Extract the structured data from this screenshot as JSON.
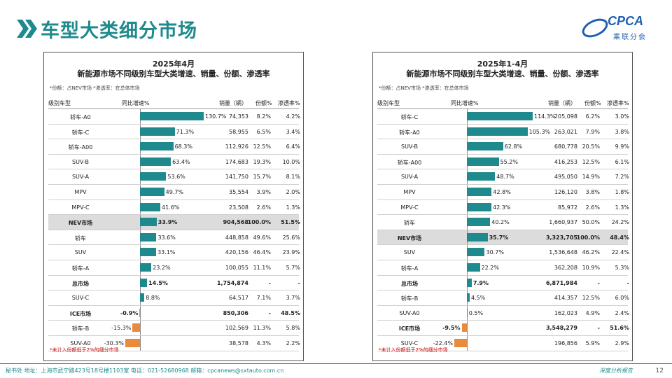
{
  "page": {
    "title": "车型大类细分市场",
    "page_number": "12",
    "slogan": "深度分析报告",
    "address": "秘书处 地址：上海市武宁路423号18号楼1103室 电话：021-52680968 邮箱：cpcanews@sxtauto.com.cn",
    "logo_text": "CPCA",
    "logo_sub": "乘联分会"
  },
  "colors": {
    "accent": "#1f8a8d",
    "positive_bar": "#1f8a8d",
    "negative_bar": "#e98b3a"
  },
  "headers": {
    "category": "级别车型",
    "growth": "同比增速%",
    "volume": "销量（辆）",
    "share": "份额%",
    "penetration": "渗透率%"
  },
  "panels": [
    {
      "title_line1": "2025年4月",
      "title_line2": "新能源市场不同级别车型大类增速、销量、份额、渗透率",
      "note": "*份额：占NEV市场 *渗透率：在总体市场",
      "footnote": "*未计入份额低于2%的细分市场",
      "axis_min": -30.3,
      "axis_max": 130.7,
      "rows": [
        {
          "category": "轿车-A0",
          "growth": 130.7,
          "growth_label": "130.7%",
          "volume": "74,353",
          "share": "8.2%",
          "penetration": "4.2%"
        },
        {
          "category": "轿车-C",
          "growth": 71.3,
          "growth_label": "71.3%",
          "volume": "58,955",
          "share": "6.5%",
          "penetration": "3.4%"
        },
        {
          "category": "轿车-A00",
          "growth": 68.3,
          "growth_label": "68.3%",
          "volume": "112,926",
          "share": "12.5%",
          "penetration": "6.4%"
        },
        {
          "category": "SUV-B",
          "growth": 63.4,
          "growth_label": "63.4%",
          "volume": "174,683",
          "share": "19.3%",
          "penetration": "10.0%"
        },
        {
          "category": "SUV-A",
          "growth": 53.6,
          "growth_label": "53.6%",
          "volume": "141,750",
          "share": "15.7%",
          "penetration": "8.1%"
        },
        {
          "category": "MPV",
          "growth": 49.7,
          "growth_label": "49.7%",
          "volume": "35,554",
          "share": "3.9%",
          "penetration": "2.0%"
        },
        {
          "category": "MPV-C",
          "growth": 41.6,
          "growth_label": "41.6%",
          "volume": "23,508",
          "share": "2.6%",
          "penetration": "1.3%"
        },
        {
          "category": "NEV市场",
          "growth": 33.9,
          "growth_label": "33.9%",
          "volume": "904,568",
          "share": "100.0%",
          "penetration": "51.5%",
          "style": "hl"
        },
        {
          "category": "轿车",
          "growth": 33.6,
          "growth_label": "33.6%",
          "volume": "448,858",
          "share": "49.6%",
          "penetration": "25.6%"
        },
        {
          "category": "SUV",
          "growth": 33.1,
          "growth_label": "33.1%",
          "volume": "420,156",
          "share": "46.4%",
          "penetration": "23.9%"
        },
        {
          "category": "轿车-A",
          "growth": 23.2,
          "growth_label": "23.2%",
          "volume": "100,055",
          "share": "11.1%",
          "penetration": "5.7%"
        },
        {
          "category": "总市场",
          "growth": 14.5,
          "growth_label": "14.5%",
          "volume": "1,754,874",
          "share": "-",
          "penetration": "-",
          "style": "bold"
        },
        {
          "category": "SUV-C",
          "growth": 8.8,
          "growth_label": "8.8%",
          "volume": "64,517",
          "share": "7.1%",
          "penetration": "3.7%"
        },
        {
          "category": "ICE市场",
          "growth": -0.9,
          "growth_label": "-0.9%",
          "volume": "850,306",
          "share": "-",
          "penetration": "48.5%",
          "style": "bold"
        },
        {
          "category": "轿车-B",
          "growth": -15.3,
          "growth_label": "-15.3%",
          "volume": "102,569",
          "share": "11.3%",
          "penetration": "5.8%"
        },
        {
          "category": "SUV-A0",
          "growth": -30.3,
          "growth_label": "-30.3%",
          "volume": "38,578",
          "share": "4.3%",
          "penetration": "2.2%"
        }
      ]
    },
    {
      "title_line1": "2025年1-4月",
      "title_line2": "新能源市场不同级别车型大类增速、销量、份额、渗透率",
      "note": "*份额：占NEV市场 *渗透率：在总体市场",
      "footnote": "*未计入份额低于2%的细分市场",
      "axis_min": -22.4,
      "axis_max": 114.3,
      "rows": [
        {
          "category": "轿车-C",
          "growth": 114.3,
          "growth_label": "114.3%",
          "volume": "205,098",
          "share": "6.2%",
          "penetration": "3.0%"
        },
        {
          "category": "轿车-A0",
          "growth": 105.3,
          "growth_label": "105.3%",
          "volume": "263,021",
          "share": "7.9%",
          "penetration": "3.8%"
        },
        {
          "category": "SUV-B",
          "growth": 62.8,
          "growth_label": "62.8%",
          "volume": "680,778",
          "share": "20.5%",
          "penetration": "9.9%"
        },
        {
          "category": "轿车-A00",
          "growth": 55.2,
          "growth_label": "55.2%",
          "volume": "416,253",
          "share": "12.5%",
          "penetration": "6.1%"
        },
        {
          "category": "SUV-A",
          "growth": 48.7,
          "growth_label": "48.7%",
          "volume": "495,050",
          "share": "14.9%",
          "penetration": "7.2%"
        },
        {
          "category": "MPV",
          "growth": 42.8,
          "growth_label": "42.8%",
          "volume": "126,120",
          "share": "3.8%",
          "penetration": "1.8%"
        },
        {
          "category": "MPV-C",
          "growth": 42.3,
          "growth_label": "42.3%",
          "volume": "85,972",
          "share": "2.6%",
          "penetration": "1.3%"
        },
        {
          "category": "轿车",
          "growth": 40.2,
          "growth_label": "40.2%",
          "volume": "1,660,937",
          "share": "50.0%",
          "penetration": "24.2%"
        },
        {
          "category": "NEV市场",
          "growth": 35.7,
          "growth_label": "35.7%",
          "volume": "3,323,705",
          "share": "100.0%",
          "penetration": "48.4%",
          "style": "hl"
        },
        {
          "category": "SUV",
          "growth": 30.7,
          "growth_label": "30.7%",
          "volume": "1,536,648",
          "share": "46.2%",
          "penetration": "22.4%"
        },
        {
          "category": "轿车-A",
          "growth": 22.2,
          "growth_label": "22.2%",
          "volume": "362,208",
          "share": "10.9%",
          "penetration": "5.3%"
        },
        {
          "category": "总市场",
          "growth": 7.9,
          "growth_label": "7.9%",
          "volume": "6,871,984",
          "share": "-",
          "penetration": "-",
          "style": "bold"
        },
        {
          "category": "轿车-B",
          "growth": 4.5,
          "growth_label": "4.5%",
          "volume": "414,357",
          "share": "12.5%",
          "penetration": "6.0%"
        },
        {
          "category": "SUV-A0",
          "growth": 0.5,
          "growth_label": "0.5%",
          "volume": "162,023",
          "share": "4.9%",
          "penetration": "2.4%"
        },
        {
          "category": "ICE市场",
          "growth": -9.5,
          "growth_label": "-9.5%",
          "volume": "3,548,279",
          "share": "-",
          "penetration": "51.6%",
          "style": "bold"
        },
        {
          "category": "SUV-C",
          "growth": -22.4,
          "growth_label": "-22.4%",
          "volume": "196,856",
          "share": "5.9%",
          "penetration": "2.9%"
        }
      ]
    }
  ]
}
